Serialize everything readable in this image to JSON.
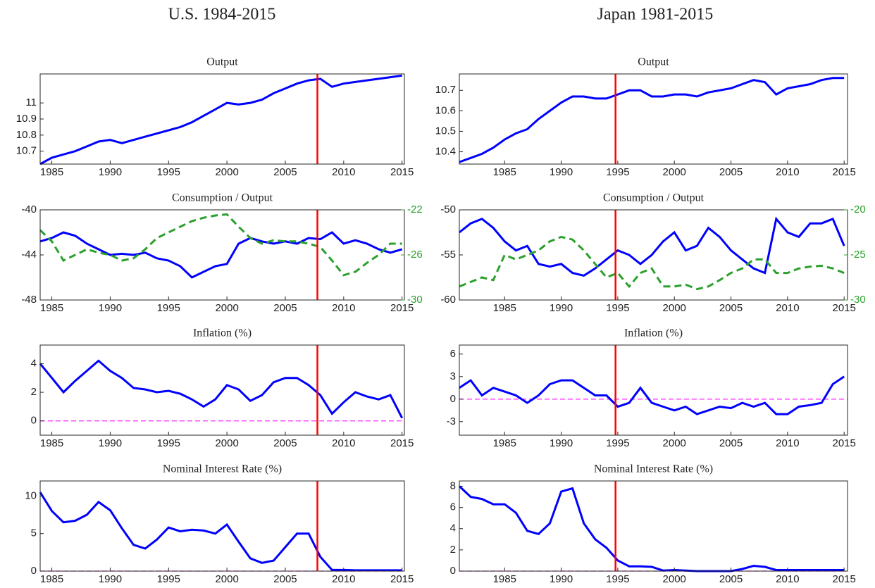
{
  "headings": [
    "U.S. 1984-2015",
    "Japan 1981-2015"
  ],
  "chart_data": [
    {
      "type": "line",
      "title": "Output",
      "xlim": [
        1984,
        2015.2
      ],
      "xticks": [
        1985,
        1990,
        1995,
        2000,
        2005,
        2010,
        2015
      ],
      "ylim": [
        10.62,
        11.18
      ],
      "yticks": [
        10.7,
        10.8,
        10.9,
        11
      ],
      "vline": 2007.75,
      "vline_color": "#ff0000",
      "x": [
        1984,
        1985,
        1986,
        1987,
        1988,
        1989,
        1990,
        1991,
        1992,
        1993,
        1994,
        1995,
        1996,
        1997,
        1998,
        1999,
        2000,
        2001,
        2002,
        2003,
        2004,
        2005,
        2006,
        2007,
        2008,
        2009,
        2010,
        2011,
        2012,
        2013,
        2014,
        2015
      ],
      "series": [
        {
          "color": "#0000ff",
          "style": "solid",
          "values": [
            10.62,
            10.66,
            10.68,
            10.7,
            10.73,
            10.76,
            10.77,
            10.75,
            10.77,
            10.79,
            10.81,
            10.83,
            10.85,
            10.88,
            10.92,
            10.96,
            11.0,
            10.99,
            11.0,
            11.02,
            11.06,
            11.09,
            11.12,
            11.14,
            11.15,
            11.1,
            11.12,
            11.13,
            11.14,
            11.15,
            11.16,
            11.17
          ]
        }
      ]
    },
    {
      "type": "line",
      "title": "Consumption / Output",
      "xlim": [
        1984,
        2015.2
      ],
      "xticks": [
        1985,
        1990,
        1995,
        2000,
        2005,
        2010,
        2015
      ],
      "ylim": [
        -48,
        -40
      ],
      "yticks": [
        -48,
        -44,
        -40
      ],
      "y2lim": [
        -30,
        -22
      ],
      "y2ticks": [
        -30,
        -26,
        -22
      ],
      "y2_color": "#2ca02c",
      "vline": 2007.75,
      "vline_color": "#ff0000",
      "x": [
        1984,
        1985,
        1986,
        1987,
        1988,
        1989,
        1990,
        1991,
        1992,
        1993,
        1994,
        1995,
        1996,
        1997,
        1998,
        1999,
        2000,
        2001,
        2002,
        2003,
        2004,
        2005,
        2006,
        2007,
        2008,
        2009,
        2010,
        2011,
        2012,
        2013,
        2014,
        2015
      ],
      "series": [
        {
          "color": "#0000ff",
          "style": "solid",
          "values": [
            -42.8,
            -42.5,
            -42.0,
            -42.3,
            -43.0,
            -43.5,
            -44.0,
            -43.9,
            -44.0,
            -43.8,
            -44.3,
            -44.5,
            -45.0,
            -46.0,
            -45.5,
            -45.0,
            -44.8,
            -43.0,
            -42.5,
            -42.8,
            -43.0,
            -42.8,
            -43.0,
            -42.5,
            -42.6,
            -42.0,
            -43.0,
            -42.7,
            -43.0,
            -43.5,
            -43.8,
            -43.5
          ]
        },
        {
          "color": "#2ca02c",
          "style": "dashed",
          "axis": "y2",
          "values": [
            -23.8,
            -24.8,
            -26.5,
            -26.0,
            -25.5,
            -25.8,
            -26.0,
            -26.5,
            -26.3,
            -25.5,
            -24.5,
            -24.0,
            -23.5,
            -23.0,
            -22.7,
            -22.5,
            -22.4,
            -23.5,
            -24.5,
            -25.0,
            -24.7,
            -24.8,
            -24.8,
            -25.0,
            -25.3,
            -26.5,
            -27.8,
            -27.5,
            -26.7,
            -26.0,
            -25.0,
            -25.0
          ]
        }
      ]
    },
    {
      "type": "line",
      "title": "Inflation (%)",
      "xlim": [
        1984,
        2015.2
      ],
      "xticks": [
        1985,
        1990,
        1995,
        2000,
        2005,
        2010,
        2015
      ],
      "ylim": [
        -1,
        5.3
      ],
      "yticks": [
        0,
        2,
        4
      ],
      "vline": 2007.75,
      "vline_color": "#ff0000",
      "hline": 0,
      "hline_color": "#ff33ff",
      "x": [
        1984,
        1985,
        1986,
        1987,
        1988,
        1989,
        1990,
        1991,
        1992,
        1993,
        1994,
        1995,
        1996,
        1997,
        1998,
        1999,
        2000,
        2001,
        2002,
        2003,
        2004,
        2005,
        2006,
        2007,
        2008,
        2009,
        2010,
        2011,
        2012,
        2013,
        2014,
        2015
      ],
      "series": [
        {
          "color": "#0000ff",
          "style": "solid",
          "values": [
            4.0,
            3.0,
            2.0,
            2.8,
            3.5,
            4.2,
            3.5,
            3.0,
            2.3,
            2.2,
            2.0,
            2.1,
            1.9,
            1.5,
            1.0,
            1.5,
            2.5,
            2.2,
            1.4,
            1.8,
            2.7,
            3.0,
            3.0,
            2.5,
            1.8,
            0.5,
            1.3,
            2.0,
            1.7,
            1.5,
            1.8,
            0.2
          ]
        }
      ]
    },
    {
      "type": "line",
      "title": "Nominal Interest Rate (%)",
      "xlim": [
        1984,
        2015.2
      ],
      "xticks": [
        1985,
        1990,
        1995,
        2000,
        2005,
        2010,
        2015
      ],
      "ylim": [
        0,
        12
      ],
      "yticks": [
        0,
        5,
        10
      ],
      "vline": 2007.75,
      "vline_color": "#ff0000",
      "hline": 0,
      "hline_color": "#ff33ff",
      "x": [
        1984,
        1985,
        1986,
        1987,
        1988,
        1989,
        1990,
        1991,
        1992,
        1993,
        1994,
        1995,
        1996,
        1997,
        1998,
        1999,
        2000,
        2001,
        2002,
        2003,
        2004,
        2005,
        2006,
        2007,
        2008,
        2009,
        2010,
        2011,
        2012,
        2013,
        2014,
        2015
      ],
      "series": [
        {
          "color": "#0000ff",
          "style": "solid",
          "values": [
            10.5,
            8.0,
            6.5,
            6.7,
            7.5,
            9.2,
            8.1,
            5.7,
            3.5,
            3.0,
            4.2,
            5.8,
            5.3,
            5.5,
            5.4,
            5.0,
            6.2,
            3.9,
            1.7,
            1.1,
            1.4,
            3.2,
            5.0,
            5.0,
            1.9,
            0.15,
            0.15,
            0.1,
            0.1,
            0.1,
            0.1,
            0.1
          ]
        }
      ]
    },
    {
      "type": "line",
      "title": "Output",
      "xlim": [
        1981,
        2015.3
      ],
      "xticks": [
        1985,
        1990,
        1995,
        2000,
        2005,
        2010,
        2015
      ],
      "ylim": [
        10.34,
        10.78
      ],
      "yticks": [
        10.4,
        10.5,
        10.6,
        10.7
      ],
      "vline": 1994.8,
      "vline_color": "#ff0000",
      "x": [
        1981,
        1982,
        1983,
        1984,
        1985,
        1986,
        1987,
        1988,
        1989,
        1990,
        1991,
        1992,
        1993,
        1994,
        1995,
        1996,
        1997,
        1998,
        1999,
        2000,
        2001,
        2002,
        2003,
        2004,
        2005,
        2006,
        2007,
        2008,
        2009,
        2010,
        2011,
        2012,
        2013,
        2014,
        2015
      ],
      "series": [
        {
          "color": "#0000ff",
          "style": "solid",
          "values": [
            10.35,
            10.37,
            10.39,
            10.42,
            10.46,
            10.49,
            10.51,
            10.56,
            10.6,
            10.64,
            10.67,
            10.67,
            10.66,
            10.66,
            10.68,
            10.7,
            10.7,
            10.67,
            10.67,
            10.68,
            10.68,
            10.67,
            10.69,
            10.7,
            10.71,
            10.73,
            10.75,
            10.74,
            10.68,
            10.71,
            10.72,
            10.73,
            10.75,
            10.76,
            10.76
          ]
        }
      ]
    },
    {
      "type": "line",
      "title": "Consumption / Output",
      "xlim": [
        1981,
        2015.3
      ],
      "xticks": [
        1985,
        1990,
        1995,
        2000,
        2005,
        2010,
        2015
      ],
      "ylim": [
        -60,
        -50
      ],
      "yticks": [
        -60,
        -55,
        -50
      ],
      "y2lim": [
        -30,
        -20
      ],
      "y2ticks": [
        -30,
        -25,
        -20
      ],
      "y2_color": "#2ca02c",
      "vline": 1994.8,
      "vline_color": "#ff0000",
      "x": [
        1981,
        1982,
        1983,
        1984,
        1985,
        1986,
        1987,
        1988,
        1989,
        1990,
        1991,
        1992,
        1993,
        1994,
        1995,
        1996,
        1997,
        1998,
        1999,
        2000,
        2001,
        2002,
        2003,
        2004,
        2005,
        2006,
        2007,
        2008,
        2009,
        2010,
        2011,
        2012,
        2013,
        2014,
        2015
      ],
      "series": [
        {
          "color": "#0000ff",
          "style": "solid",
          "values": [
            -52.5,
            -51.5,
            -51.0,
            -52.0,
            -53.5,
            -54.5,
            -54.0,
            -56.0,
            -56.3,
            -56.0,
            -57.0,
            -57.3,
            -56.5,
            -55.5,
            -54.5,
            -55.0,
            -56.0,
            -55.0,
            -53.5,
            -52.5,
            -54.5,
            -54.0,
            -52.0,
            -53.0,
            -54.5,
            -55.5,
            -56.5,
            -57.0,
            -51.0,
            -52.5,
            -53.0,
            -51.5,
            -51.5,
            -51.0,
            -54.0
          ]
        },
        {
          "color": "#2ca02c",
          "style": "dashed",
          "axis": "y2",
          "values": [
            -28.5,
            -28.0,
            -27.5,
            -27.8,
            -25.0,
            -25.5,
            -25.0,
            -24.5,
            -23.5,
            -23.0,
            -23.3,
            -24.5,
            -26.0,
            -27.5,
            -27.0,
            -28.5,
            -27.0,
            -26.5,
            -28.5,
            -28.5,
            -28.3,
            -28.8,
            -28.5,
            -27.8,
            -27.0,
            -26.5,
            -25.5,
            -25.5,
            -27.0,
            -27.0,
            -26.5,
            -26.3,
            -26.2,
            -26.5,
            -27.0
          ]
        }
      ]
    },
    {
      "type": "line",
      "title": "Inflation (%)",
      "xlim": [
        1981,
        2015.3
      ],
      "xticks": [
        1985,
        1990,
        1995,
        2000,
        2005,
        2010,
        2015
      ],
      "ylim": [
        -4.8,
        7.2
      ],
      "yticks": [
        -3,
        0,
        3,
        6
      ],
      "vline": 1994.8,
      "vline_color": "#ff0000",
      "hline": 0,
      "hline_color": "#ff33ff",
      "x": [
        1981,
        1982,
        1983,
        1984,
        1985,
        1986,
        1987,
        1988,
        1989,
        1990,
        1991,
        1992,
        1993,
        1994,
        1995,
        1996,
        1997,
        1998,
        1999,
        2000,
        2001,
        2002,
        2003,
        2004,
        2005,
        2006,
        2007,
        2008,
        2009,
        2010,
        2011,
        2012,
        2013,
        2014,
        2015
      ],
      "series": [
        {
          "color": "#0000ff",
          "style": "solid",
          "values": [
            1.5,
            2.5,
            0.5,
            1.5,
            1.0,
            0.5,
            -0.5,
            0.5,
            2.0,
            2.5,
            2.5,
            1.5,
            0.5,
            0.5,
            -1.0,
            -0.5,
            1.5,
            -0.5,
            -1.0,
            -1.5,
            -1.0,
            -2.0,
            -1.5,
            -1.0,
            -1.2,
            -0.5,
            -1.0,
            -0.5,
            -2.0,
            -2.0,
            -1.0,
            -0.8,
            -0.5,
            2.0,
            3.0
          ]
        }
      ]
    },
    {
      "type": "line",
      "title": "Nominal Interest Rate (%)",
      "xlim": [
        1981,
        2015.3
      ],
      "xticks": [
        1985,
        1990,
        1995,
        2000,
        2005,
        2010,
        2015
      ],
      "ylim": [
        0,
        8.5
      ],
      "yticks": [
        0,
        2,
        4,
        6,
        8
      ],
      "vline": 1994.8,
      "vline_color": "#ff0000",
      "hline": 0,
      "hline_color": "#ff33ff",
      "x": [
        1981,
        1982,
        1983,
        1984,
        1985,
        1986,
        1987,
        1988,
        1989,
        1990,
        1991,
        1992,
        1993,
        1994,
        1995,
        1996,
        1997,
        1998,
        1999,
        2000,
        2001,
        2002,
        2003,
        2004,
        2005,
        2006,
        2007,
        2008,
        2009,
        2010,
        2011,
        2012,
        2013,
        2014,
        2015
      ],
      "series": [
        {
          "color": "#0000ff",
          "style": "solid",
          "values": [
            8.0,
            7.0,
            6.8,
            6.3,
            6.3,
            5.5,
            3.8,
            3.5,
            4.5,
            7.5,
            7.8,
            4.5,
            3.0,
            2.2,
            1.0,
            0.45,
            0.45,
            0.4,
            0.05,
            0.1,
            0.05,
            0.0,
            0.0,
            0.0,
            0.0,
            0.2,
            0.5,
            0.4,
            0.1,
            0.1,
            0.1,
            0.1,
            0.1,
            0.1,
            0.1
          ]
        }
      ]
    }
  ]
}
